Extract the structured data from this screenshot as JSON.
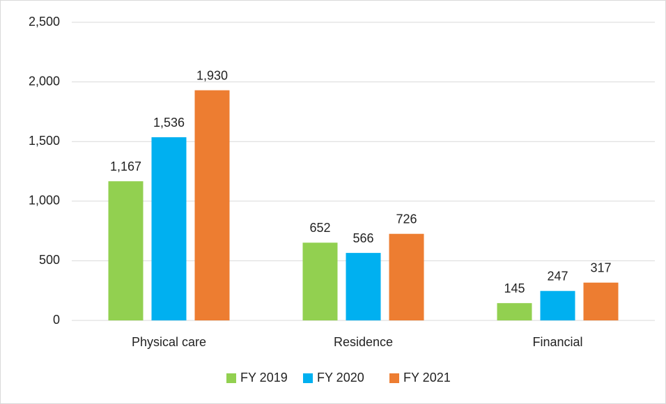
{
  "chart_data": {
    "type": "bar",
    "categories": [
      "Physical care",
      "Residence",
      "Financial"
    ],
    "series": [
      {
        "name": "FY 2019",
        "color": "#92d050",
        "values": [
          1167,
          652,
          145
        ],
        "value_labels": [
          "1,167",
          "652",
          "145"
        ]
      },
      {
        "name": "FY 2020",
        "color": "#00b0f0",
        "values": [
          1536,
          566,
          247
        ],
        "value_labels": [
          "1,536",
          "566",
          "247"
        ]
      },
      {
        "name": "FY 2021",
        "color": "#ed7d31",
        "values": [
          1930,
          726,
          317
        ],
        "value_labels": [
          "1,930",
          "726",
          "317"
        ]
      }
    ],
    "ylim": [
      0,
      2500
    ],
    "yticks": [
      0,
      500,
      {
        "value": 1000,
        "label": "1,000"
      },
      {
        "value": 1500,
        "label": "1,500"
      },
      {
        "value": 2000,
        "label": "2,000"
      },
      {
        "value": 2500,
        "label": "2,500"
      }
    ],
    "grid": true,
    "legend": "bottom"
  }
}
